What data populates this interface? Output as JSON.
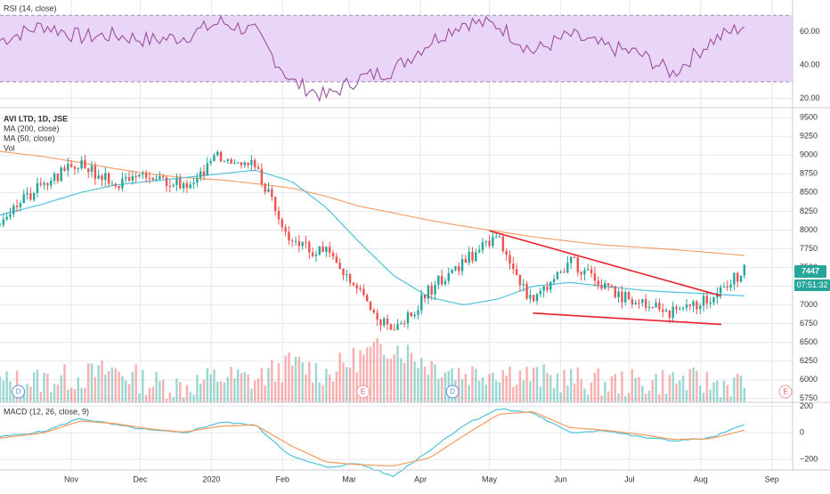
{
  "colors": {
    "up": "#26a69a",
    "down": "#ef5350",
    "ma200": "#f7a26b",
    "ma50": "#4fc3d9",
    "rsi_line": "#9c4f9f",
    "rsi_band": "#e9d5f5",
    "macd_line": "#4fc3d9",
    "signal_line": "#f79a5a",
    "trendline": "#e8202a",
    "grid": "#e6e8ee",
    "axis_text": "#333333",
    "price_label": "#26a69a"
  },
  "panes": {
    "rsi": {
      "title": "RSI (14, close)",
      "ticks": [
        "60.00",
        "40.00",
        "20.00"
      ],
      "ylim": [
        16,
        76
      ],
      "band": [
        30,
        70
      ]
    },
    "price": {
      "legend": [
        "AVI LTD, 1D, JSE",
        "MA (200, close)",
        "MA (50, close)",
        "Vol"
      ],
      "ticks": [
        "9500",
        "9250",
        "9000",
        "8750",
        "8500",
        "8250",
        "8000",
        "7750",
        "7500",
        "7250",
        "7000",
        "6750",
        "6500",
        "6250",
        "6000",
        "5750"
      ],
      "ylim": [
        5700,
        9550
      ],
      "last_price": "7447",
      "countdown": "07:51:32"
    },
    "macd": {
      "title": "MACD (12, 26, close, 9)",
      "ticks": [
        "200",
        "0",
        "−200"
      ],
      "ylim": [
        -280,
        230
      ]
    }
  },
  "x_axis": {
    "labels": [
      "Nov",
      "Dec",
      "2020",
      "Feb",
      "Mar",
      "Apr",
      "May",
      "Jun",
      "Jul",
      "Aug",
      "Sep"
    ]
  },
  "event_markers": [
    "D",
    "E",
    "D",
    "E"
  ],
  "chart_data": [
    {
      "type": "line",
      "name": "RSI (14, close)",
      "x": [
        "2019-10-01",
        "2019-10-20",
        "2019-11-05",
        "2019-11-20",
        "2019-12-05",
        "2019-12-20",
        "2020-01-05",
        "2020-01-20",
        "2020-02-05",
        "2020-02-20",
        "2020-03-05",
        "2020-03-20",
        "2020-04-05",
        "2020-04-20",
        "2020-05-05",
        "2020-05-20",
        "2020-06-05",
        "2020-06-20",
        "2020-07-05",
        "2020-07-20",
        "2020-08-05",
        "2020-08-20"
      ],
      "values": [
        55,
        64,
        57,
        58,
        55,
        57,
        66,
        60,
        30,
        21,
        32,
        37,
        54,
        66,
        64,
        48,
        58,
        51,
        47,
        35,
        54,
        64
      ]
    },
    {
      "type": "candlestick",
      "name": "AVI LTD, 1D, JSE",
      "x": [
        "2019-10-01",
        "2019-10-20",
        "2019-11-05",
        "2019-11-20",
        "2019-12-05",
        "2019-12-20",
        "2020-01-05",
        "2020-01-20",
        "2020-02-05",
        "2020-02-20",
        "2020-03-05",
        "2020-03-20",
        "2020-04-05",
        "2020-04-20",
        "2020-05-05",
        "2020-05-20",
        "2020-06-05",
        "2020-06-20",
        "2020-07-05",
        "2020-07-20",
        "2020-08-05",
        "2020-08-20"
      ],
      "values": [
        8150,
        8600,
        8900,
        8600,
        8700,
        8600,
        9000,
        8900,
        7800,
        7700,
        7200,
        6600,
        7200,
        7600,
        7900,
        7000,
        7600,
        7250,
        7000,
        6900,
        7100,
        7450
      ],
      "ma200": [
        9050,
        8980,
        8900,
        8820,
        8750,
        8700,
        8670,
        8620,
        8560,
        8450,
        8320,
        8230,
        8130,
        8050,
        7980,
        7910,
        7850,
        7800,
        7770,
        7740,
        7700,
        7660
      ],
      "ma50": [
        8200,
        8350,
        8500,
        8600,
        8650,
        8700,
        8750,
        8800,
        8650,
        8300,
        7850,
        7400,
        7100,
        7000,
        7080,
        7250,
        7300,
        7250,
        7200,
        7170,
        7150,
        7120
      ]
    },
    {
      "type": "bar",
      "name": "Vol",
      "x": [
        "2019-10-01",
        "2019-10-20",
        "2019-11-05",
        "2019-11-20",
        "2019-12-05",
        "2019-12-20",
        "2020-01-05",
        "2020-01-20",
        "2020-02-05",
        "2020-02-20",
        "2020-03-05",
        "2020-03-20",
        "2020-04-05",
        "2020-04-20",
        "2020-05-05",
        "2020-05-20",
        "2020-06-05",
        "2020-06-20",
        "2020-07-05",
        "2020-07-20",
        "2020-08-05",
        "2020-08-20"
      ],
      "values": [
        0.3,
        0.35,
        0.4,
        0.5,
        0.3,
        0.25,
        0.4,
        0.35,
        0.6,
        0.45,
        0.7,
        0.9,
        0.6,
        0.45,
        0.5,
        0.4,
        0.35,
        0.3,
        0.3,
        0.35,
        0.3,
        0.28
      ]
    },
    {
      "type": "line",
      "name": "MACD (12, 26, close, 9)",
      "x": [
        "2019-10-01",
        "2019-10-20",
        "2019-11-05",
        "2019-11-20",
        "2019-12-05",
        "2019-12-20",
        "2020-01-05",
        "2020-01-20",
        "2020-02-05",
        "2020-02-20",
        "2020-03-05",
        "2020-03-20",
        "2020-04-05",
        "2020-04-20",
        "2020-05-05",
        "2020-05-20",
        "2020-06-05",
        "2020-06-20",
        "2020-07-05",
        "2020-07-20",
        "2020-08-05",
        "2020-08-20"
      ],
      "macd": [
        -30,
        10,
        110,
        60,
        20,
        0,
        80,
        60,
        -180,
        -260,
        -230,
        -330,
        -130,
        60,
        180,
        150,
        0,
        20,
        -30,
        -60,
        -40,
        60
      ],
      "signal": [
        -40,
        0,
        90,
        70,
        30,
        5,
        50,
        60,
        -100,
        -220,
        -240,
        -250,
        -190,
        -20,
        140,
        160,
        40,
        20,
        -10,
        -50,
        -45,
        20
      ]
    }
  ]
}
